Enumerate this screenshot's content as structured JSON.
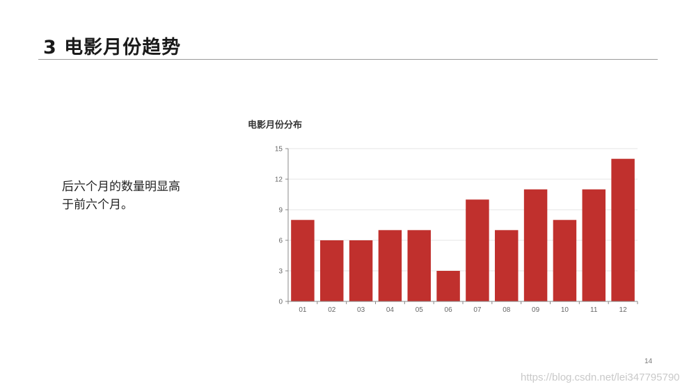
{
  "slide": {
    "title": "3 电影月份趋势",
    "body_line1": "后六个月的数量明显高",
    "body_line2": "于前六个月。",
    "page_number": "14",
    "watermark": "https://blog.csdn.net/lei347795790"
  },
  "colors": {
    "bar": "#c0302d",
    "grid": "#e6e6e6",
    "axis": "#888888"
  },
  "chart_data": {
    "type": "bar",
    "title": "电影月份分布",
    "categories": [
      "01",
      "02",
      "03",
      "04",
      "05",
      "06",
      "07",
      "08",
      "09",
      "10",
      "11",
      "12"
    ],
    "values": [
      8,
      6,
      6,
      7,
      7,
      3,
      10,
      7,
      11,
      8,
      11,
      14
    ],
    "ylim": [
      0,
      15
    ],
    "yticks": [
      0,
      3,
      6,
      9,
      12,
      15
    ],
    "xlabel": "",
    "ylabel": "",
    "grid": true
  }
}
